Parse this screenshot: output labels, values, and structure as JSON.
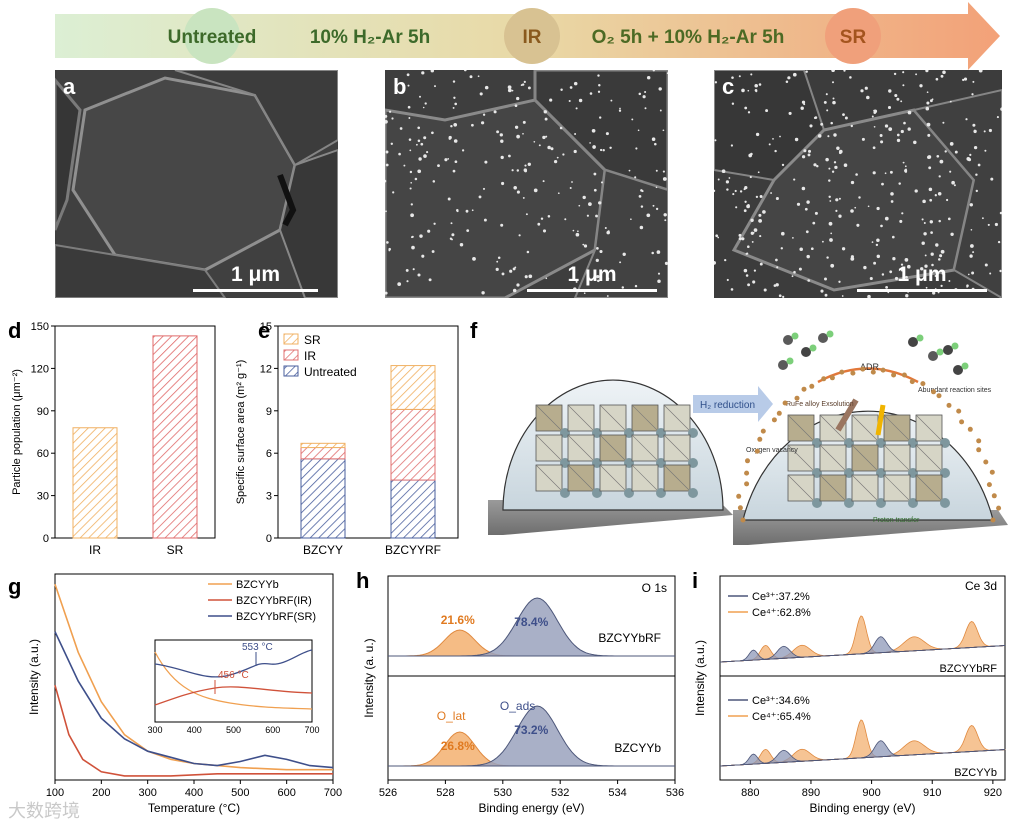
{
  "process_bar": {
    "steps": [
      "Untreated",
      "10% H₂-Ar 5h",
      "IR",
      "O₂ 5h + 10% H₂-Ar 5h",
      "SR"
    ],
    "colors": {
      "start": "#d7ecd0",
      "end": "#f2a27c",
      "untreated_circle": "#c9e4c0",
      "ir_circle": "#d7c08d",
      "sr_circle": "#f0a07b",
      "text_green": "#3d6a2a",
      "text_orange": "#a4541e"
    }
  },
  "sem_panels": [
    {
      "label": "a",
      "scale": "1 μm"
    },
    {
      "label": "b",
      "scale": "1 μm"
    },
    {
      "label": "c",
      "scale": "1 μm"
    }
  ],
  "panel_labels": {
    "d": "d",
    "e": "e",
    "f": "f",
    "g": "g",
    "h": "h",
    "i": "i"
  },
  "schematic_f": {
    "arrow_label": "H₂ reduction",
    "adr": "ADR",
    "alloy": "RuFe alloy Exsolution",
    "sites": "Abundant reaction sites",
    "vacancy": "Oxygen vacancy",
    "proton": "Proton transfer"
  },
  "chart_data": [
    {
      "panel": "d",
      "type": "bar",
      "categories": [
        "IR",
        "SR"
      ],
      "values": [
        78,
        143
      ],
      "xlabel": "",
      "ylabel": "Particle population (μm⁻²)",
      "ylim": [
        0,
        150
      ],
      "yticks": [
        "0",
        "30",
        "60",
        "90",
        "120",
        "150"
      ],
      "colors": [
        "#f0b062",
        "#e06a6a"
      ]
    },
    {
      "panel": "e",
      "type": "bar",
      "stacked": true,
      "categories": [
        "BZCYY",
        "BZCYYRF"
      ],
      "series": [
        {
          "name": "Untreated",
          "values": [
            5.6,
            4.1
          ],
          "color": "#4a5f9e"
        },
        {
          "name": "IR",
          "values": [
            0.8,
            5.0
          ],
          "color": "#e07070"
        },
        {
          "name": "SR",
          "values": [
            0.3,
            3.1
          ],
          "color": "#f0b062"
        }
      ],
      "legend": [
        "SR",
        "IR",
        "Untreated"
      ],
      "ylabel": "Specific surface area (m² g⁻¹)",
      "ylim": [
        0,
        15
      ],
      "yticks": [
        "0",
        "3",
        "6",
        "9",
        "12",
        "15"
      ]
    },
    {
      "panel": "g",
      "type": "line",
      "xlabel": "Temperature (°C)",
      "ylabel": "Intensity (a.u.)",
      "xlim": [
        100,
        700
      ],
      "xticks": [
        "100",
        "200",
        "300",
        "400",
        "500",
        "600",
        "700"
      ],
      "legend": [
        "BZCYYb",
        "BZCYYbRF(IR)",
        "BZCYYbRF(SR)"
      ],
      "series": [
        {
          "name": "BZCYYb",
          "color": "#f0a050",
          "x": [
            100,
            150,
            200,
            250,
            300,
            350,
            400,
            500,
            600,
            700
          ],
          "y": [
            0.95,
            0.62,
            0.38,
            0.22,
            0.14,
            0.1,
            0.08,
            0.06,
            0.05,
            0.05
          ]
        },
        {
          "name": "BZCYYbRF(IR)",
          "color": "#d0523a",
          "x": [
            100,
            130,
            160,
            200,
            250,
            300,
            350,
            450,
            550,
            650,
            700
          ],
          "y": [
            0.46,
            0.22,
            0.1,
            0.04,
            0.02,
            0.02,
            0.02,
            0.03,
            0.03,
            0.03,
            0.03
          ]
        },
        {
          "name": "BZCYYbRF(SR)",
          "color": "#3e4f8a",
          "x": [
            100,
            150,
            200,
            250,
            300,
            350,
            400,
            450,
            500,
            553,
            600,
            650,
            700
          ],
          "y": [
            0.72,
            0.48,
            0.3,
            0.2,
            0.14,
            0.11,
            0.08,
            0.07,
            0.09,
            0.12,
            0.1,
            0.07,
            0.06
          ]
        }
      ],
      "inset": {
        "xlim": [
          300,
          700
        ],
        "xticks": [
          "300",
          "400",
          "500",
          "600",
          "700"
        ],
        "annotations": [
          "553 °C",
          "456 °C"
        ]
      }
    },
    {
      "panel": "h",
      "type": "line",
      "title": "O 1s",
      "xlabel": "Binding energy (eV)",
      "ylabel": "Intensity (a. u.)",
      "xlim": [
        526,
        536
      ],
      "xticks": [
        "526",
        "528",
        "530",
        "532",
        "534",
        "536"
      ],
      "spectra": [
        {
          "name": "BZCYYbRF",
          "peaks": [
            {
              "center": 528.5,
              "percent": "21.6%",
              "color": "#f0a050"
            },
            {
              "center": 531.2,
              "percent": "78.4%",
              "color": "#8e98b8"
            }
          ]
        },
        {
          "name": "BZCYYb",
          "peaks": [
            {
              "center": 528.5,
              "percent": "26.8%",
              "color": "#f0a050"
            },
            {
              "center": 531.2,
              "percent": "73.2%",
              "color": "#8e98b8"
            }
          ]
        }
      ],
      "peak_labels": [
        "O_lat",
        "O_ads"
      ]
    },
    {
      "panel": "i",
      "type": "line",
      "title": "Ce 3d",
      "xlabel": "Binding energy (eV)",
      "ylabel": "Intensity (a.u.)",
      "xlim": [
        875,
        922
      ],
      "xticks": [
        "880",
        "890",
        "900",
        "910",
        "920"
      ],
      "spectra": [
        {
          "name": "BZCYYbRF",
          "ce3": "Ce³⁺:37.2%",
          "ce4": "Ce⁴⁺:62.8%"
        },
        {
          "name": "BZCYYb",
          "ce3": "Ce³⁺:34.6%",
          "ce4": "Ce⁴⁺:65.4%"
        }
      ]
    }
  ],
  "watermark": "大数跨境"
}
